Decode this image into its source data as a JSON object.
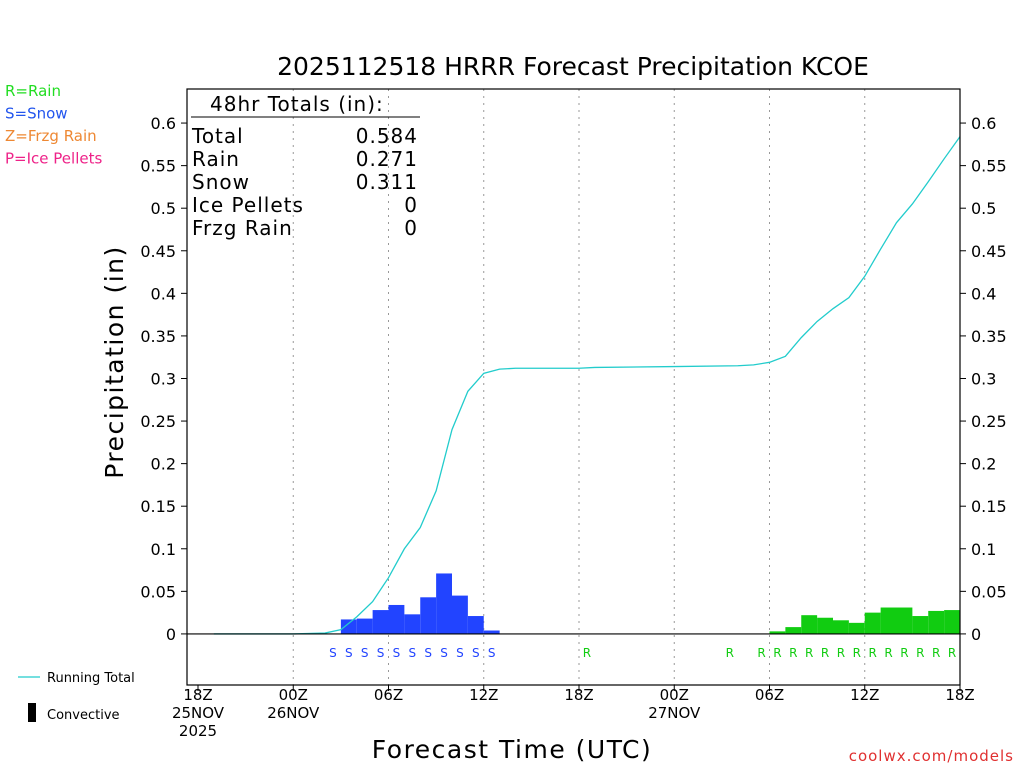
{
  "title": "2025112518 HRRR Forecast Precipitation KCOE",
  "legend_types": [
    {
      "label": "R=Rain",
      "color": "#22dd22"
    },
    {
      "label": "S=Snow",
      "color": "#2255ee"
    },
    {
      "label": "Z=Frzg Rain",
      "color": "#ee8833"
    },
    {
      "label": "P=Ice Pellets",
      "color": "#ee2288"
    }
  ],
  "totals": {
    "header": "48hr Totals (in):",
    "rows": [
      {
        "label": "Total",
        "value": "0.584"
      },
      {
        "label": "Rain",
        "value": "0.271"
      },
      {
        "label": "Snow",
        "value": "0.311"
      },
      {
        "label": "Ice Pellets",
        "value": "0"
      },
      {
        "label": "Frzg Rain",
        "value": "0"
      }
    ]
  },
  "legend_bottom": {
    "running_total": "Running Total",
    "convective": "Convective"
  },
  "watermark": "coolwx.com/models",
  "colors": {
    "snow": "#2244ff",
    "rain": "#11cc11",
    "running_total": "#22cccc"
  },
  "chart_data": {
    "type": "bar",
    "title": "2025112518 HRRR Forecast Precipitation KCOE",
    "xlabel": "Forecast Time (UTC)",
    "ylabel": "Precipitation (in)",
    "xlim": [
      0,
      48
    ],
    "ylim": [
      -0.06,
      0.64
    ],
    "y_ticks": [
      0,
      0.05,
      0.1,
      0.15,
      0.2,
      0.25,
      0.3,
      0.35,
      0.4,
      0.45,
      0.5,
      0.55,
      0.6
    ],
    "y_tick_labels": [
      "0",
      "0.05",
      "0.1",
      "0.15",
      "0.2",
      "0.25",
      "0.3",
      "0.35",
      "0.4",
      "0.45",
      "0.5",
      "0.55",
      "0.6"
    ],
    "x_ticks": [
      {
        "x": 0,
        "lines": [
          "18Z",
          "25NOV",
          "2025"
        ]
      },
      {
        "x": 6,
        "lines": [
          "00Z",
          "26NOV"
        ]
      },
      {
        "x": 12,
        "lines": [
          "06Z"
        ]
      },
      {
        "x": 18,
        "lines": [
          "12Z"
        ]
      },
      {
        "x": 24,
        "lines": [
          "18Z"
        ]
      },
      {
        "x": 30,
        "lines": [
          "00Z",
          "27NOV"
        ]
      },
      {
        "x": 36,
        "lines": [
          "06Z"
        ]
      },
      {
        "x": 42,
        "lines": [
          "12Z"
        ]
      },
      {
        "x": 48,
        "lines": [
          "18Z"
        ]
      }
    ],
    "grid": "dotted vertical at x ticks",
    "hourly_bars": [
      {
        "hour": 10,
        "value": 0.017,
        "type": "S"
      },
      {
        "hour": 11,
        "value": 0.018,
        "type": "S"
      },
      {
        "hour": 12,
        "value": 0.028,
        "type": "S"
      },
      {
        "hour": 13,
        "value": 0.034,
        "type": "S"
      },
      {
        "hour": 14,
        "value": 0.023,
        "type": "S"
      },
      {
        "hour": 15,
        "value": 0.043,
        "type": "S"
      },
      {
        "hour": 16,
        "value": 0.071,
        "type": "S"
      },
      {
        "hour": 17,
        "value": 0.045,
        "type": "S"
      },
      {
        "hour": 18,
        "value": 0.021,
        "type": "S"
      },
      {
        "hour": 19,
        "value": 0.004,
        "type": "S"
      },
      {
        "hour": 37,
        "value": 0.003,
        "type": "R"
      },
      {
        "hour": 38,
        "value": 0.008,
        "type": "R"
      },
      {
        "hour": 39,
        "value": 0.022,
        "type": "R"
      },
      {
        "hour": 40,
        "value": 0.019,
        "type": "R"
      },
      {
        "hour": 41,
        "value": 0.016,
        "type": "R"
      },
      {
        "hour": 42,
        "value": 0.013,
        "type": "R"
      },
      {
        "hour": 43,
        "value": 0.025,
        "type": "R"
      },
      {
        "hour": 44,
        "value": 0.031,
        "type": "R"
      },
      {
        "hour": 45,
        "value": 0.031,
        "type": "R"
      },
      {
        "hour": 46,
        "value": 0.021,
        "type": "R"
      },
      {
        "hour": 47,
        "value": 0.027,
        "type": "R"
      },
      {
        "hour": 48,
        "value": 0.028,
        "type": "R"
      }
    ],
    "type_markers": [
      {
        "hour": 9,
        "type": "S"
      },
      {
        "hour": 10,
        "type": "S"
      },
      {
        "hour": 11,
        "type": "S"
      },
      {
        "hour": 12,
        "type": "S"
      },
      {
        "hour": 13,
        "type": "S"
      },
      {
        "hour": 14,
        "type": "S"
      },
      {
        "hour": 15,
        "type": "S"
      },
      {
        "hour": 16,
        "type": "S"
      },
      {
        "hour": 17,
        "type": "S"
      },
      {
        "hour": 18,
        "type": "S"
      },
      {
        "hour": 19,
        "type": "S"
      },
      {
        "hour": 25,
        "type": "R"
      },
      {
        "hour": 34,
        "type": "R"
      },
      {
        "hour": 36,
        "type": "R"
      },
      {
        "hour": 37,
        "type": "R"
      },
      {
        "hour": 38,
        "type": "R"
      },
      {
        "hour": 39,
        "type": "R"
      },
      {
        "hour": 40,
        "type": "R"
      },
      {
        "hour": 41,
        "type": "R"
      },
      {
        "hour": 42,
        "type": "R"
      },
      {
        "hour": 43,
        "type": "R"
      },
      {
        "hour": 44,
        "type": "R"
      },
      {
        "hour": 45,
        "type": "R"
      },
      {
        "hour": 46,
        "type": "R"
      },
      {
        "hour": 47,
        "type": "R"
      },
      {
        "hour": 48,
        "type": "R"
      }
    ],
    "running_total": [
      [
        1,
        0
      ],
      [
        6,
        0
      ],
      [
        8,
        0.001
      ],
      [
        9,
        0.005
      ],
      [
        10,
        0.02
      ],
      [
        11,
        0.038
      ],
      [
        12,
        0.066
      ],
      [
        13,
        0.1
      ],
      [
        14,
        0.125
      ],
      [
        15,
        0.168
      ],
      [
        16,
        0.24
      ],
      [
        17,
        0.285
      ],
      [
        18,
        0.306
      ],
      [
        19,
        0.311
      ],
      [
        20,
        0.312
      ],
      [
        24,
        0.312
      ],
      [
        25,
        0.313
      ],
      [
        30,
        0.314
      ],
      [
        34,
        0.315
      ],
      [
        35,
        0.316
      ],
      [
        36,
        0.319
      ],
      [
        37,
        0.326
      ],
      [
        38,
        0.348
      ],
      [
        39,
        0.367
      ],
      [
        40,
        0.382
      ],
      [
        41,
        0.395
      ],
      [
        42,
        0.42
      ],
      [
        43,
        0.452
      ],
      [
        44,
        0.483
      ],
      [
        45,
        0.505
      ],
      [
        46,
        0.531
      ],
      [
        47,
        0.558
      ],
      [
        48,
        0.584
      ]
    ]
  }
}
